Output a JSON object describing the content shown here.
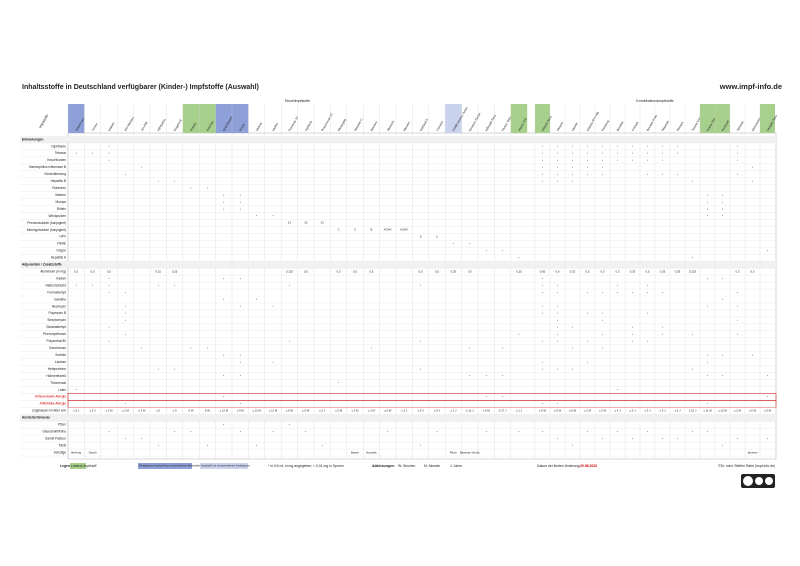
{
  "header": {
    "title": "Inhaltsstoffe in Deutschland verfügbarer (Kinder-) Impfstoffe (Auswahl)",
    "url": "www.impf-info.de"
  },
  "table": {
    "corner": "Impfstoffe",
    "groups": [
      {
        "label": "Einzelimpfstoffe",
        "from": 0,
        "to": 27
      },
      {
        "label": "Kombinationsimpfstoffe",
        "from": 28,
        "to": 43
      }
    ],
    "columns": [
      {
        "name": "Tetanol pur",
        "color": "#8ea0d8"
      },
      {
        "name": "Td-pur"
      },
      {
        "name": "Infanrix"
      },
      {
        "name": "IPV Merieux"
      },
      {
        "name": "Act-HIB"
      },
      {
        "name": "HBVaxPro"
      },
      {
        "name": "Engerix-B"
      },
      {
        "name": "Rotarix",
        "color": "#a8d08d"
      },
      {
        "name": "RotaTeq",
        "color": "#a8d08d"
      },
      {
        "name": "M-M-RVaxPro",
        "color": "#8ea0d8"
      },
      {
        "name": "Priorix",
        "color": "#8ea0d8"
      },
      {
        "name": "Varivax"
      },
      {
        "name": "Varilrix"
      },
      {
        "name": "Prevenar 13"
      },
      {
        "name": "Synflorix"
      },
      {
        "name": "Pneumovax 23"
      },
      {
        "name": "Menjugate"
      },
      {
        "name": "NeisVac-C"
      },
      {
        "name": "Bexsero"
      },
      {
        "name": "Nimenrix"
      },
      {
        "name": "Menveo"
      },
      {
        "name": "Gardasil 9"
      },
      {
        "name": "Cervarix"
      },
      {
        "name": "FSME-Immun Junior",
        "color": "#c9d3ee"
      },
      {
        "name": "Encepur Kinder"
      },
      {
        "name": "Influsplit Tetra"
      },
      {
        "name": "Fluenz Tetra"
      },
      {
        "name": "Havrix 720",
        "color": "#a8d08d"
      },
      {
        "name": "Infanrix hexa",
        "color": "#a8d08d"
      },
      {
        "name": "Hexyon"
      },
      {
        "name": "Vaxelis"
      },
      {
        "name": "Infanrix-IPV+Hib"
      },
      {
        "name": "Pentavac"
      },
      {
        "name": "Boostrix"
      },
      {
        "name": "Covaxis"
      },
      {
        "name": "Boostrix Polio"
      },
      {
        "name": "Repevax"
      },
      {
        "name": "Revaxis"
      },
      {
        "name": "Twinrix Kinder"
      },
      {
        "name": "Priorix-Tetra",
        "color": "#a8d08d"
      },
      {
        "name": "ProQuad",
        "color": "#a8d08d"
      },
      {
        "name": "Tetravac"
      },
      {
        "name": "Quinvaxem"
      },
      {
        "name": "Vaxigrip Tetra",
        "color": "#a8d08d"
      }
    ],
    "rows": [
      {
        "label": "Erkrankungen",
        "section": true
      },
      {
        "label": "Diphtherie",
        "cells": {
          "2": "•",
          "28": "•",
          "29": "•",
          "30": "•",
          "31": "•",
          "32": "•",
          "33": "•",
          "34": "•",
          "35": "•",
          "36": "•",
          "37": "•",
          "41": "•"
        }
      },
      {
        "label": "Tetanus",
        "cells": {
          "0": "•",
          "1": "•",
          "2": "•",
          "28": "•",
          "29": "•",
          "30": "•",
          "31": "•",
          "32": "•",
          "33": "•",
          "34": "•",
          "35": "•",
          "36": "•",
          "37": "•",
          "41": "•"
        }
      },
      {
        "label": "Keuchhusten",
        "cells": {
          "2": "•",
          "28": "•",
          "29": "•",
          "30": "•",
          "31": "•",
          "32": "•",
          "33": "•",
          "34": "•",
          "35": "•",
          "36": "•",
          "41": "•"
        }
      },
      {
        "label": "Haemophilus influenzae B",
        "cells": {
          "4": "•",
          "28": "•",
          "29": "•",
          "30": "•",
          "31": "•",
          "32": "•",
          "42": "•"
        }
      },
      {
        "label": "Kinderlähmung",
        "cells": {
          "3": "•",
          "28": "•",
          "29": "•",
          "30": "•",
          "31": "•",
          "32": "•",
          "35": "•",
          "36": "•",
          "37": "•",
          "41": "•"
        }
      },
      {
        "label": "Hepatitis B",
        "cells": {
          "5": "•",
          "6": "•",
          "28": "•",
          "29": "•",
          "30": "•",
          "38": "•",
          "42": "•"
        }
      },
      {
        "label": "Rotaviren",
        "cells": {
          "7": "•",
          "8": "•"
        }
      },
      {
        "label": "Masern",
        "cells": {
          "9": "•",
          "10": "•",
          "39": "•",
          "40": "•"
        }
      },
      {
        "label": "Mumps",
        "cells": {
          "9": "•",
          "10": "•",
          "39": "•",
          "40": "•"
        }
      },
      {
        "label": "Röteln",
        "cells": {
          "9": "•",
          "10": "•",
          "39": "•",
          "40": "•"
        }
      },
      {
        "label": "Windpocken",
        "cells": {
          "11": "•",
          "12": "•",
          "39": "•",
          "40": "•"
        }
      },
      {
        "label": "Pneumokokken (konjugiert)",
        "cells": {
          "13": "13",
          "14": "10",
          "15": "23"
        }
      },
      {
        "label": "Meningokokken (konjugiert)",
        "cells": {
          "16": "C",
          "17": "C",
          "18": "B",
          "19": "ACWY",
          "20": "ACWY"
        }
      },
      {
        "label": "HPV",
        "cells": {
          "21": "9",
          "22": "2"
        }
      },
      {
        "label": "FSME",
        "cells": {
          "23": "•",
          "24": "•"
        }
      },
      {
        "label": "Grippe",
        "cells": {
          "25": "•",
          "26": "•",
          "43": "•"
        }
      },
      {
        "label": "Hepatitis A",
        "cells": {
          "27": "•",
          "38": "•"
        }
      },
      {
        "label": "Adjuvantien / Zusatzstoffe",
        "section": true
      },
      {
        "label": "Aluminium (in mg)",
        "cells": {
          "0": "0,5",
          "1": "0,5",
          "2": "0,5",
          "5": "0,25",
          "6": "0,25",
          "13": "0,125",
          "14": "0,5",
          "16": "0,3",
          "17": "0,5",
          "18": "0,5",
          "21": "0,5",
          "22": "0,5",
          "23": "0,35",
          "24": "0,3",
          "27": "0,25",
          "28": "0,82",
          "29": "0,6",
          "30": "0,32",
          "31": "0,5",
          "32": "0,3",
          "33": "0,3",
          "34": "0,33",
          "35": "0,5",
          "36": "0,33",
          "37": "0,35",
          "38": "0,225",
          "41": "0,3",
          "42": "0,3"
        }
      },
      {
        "label": "Kalium",
        "cells": {
          "2": "•",
          "9": "•",
          "10": "•",
          "28": "•",
          "39": "•",
          "40": "•"
        }
      },
      {
        "label": "Natriumchlorid",
        "cells": {
          "0": "•",
          "1": "•",
          "2": "•",
          "5": "•",
          "6": "•",
          "13": "•",
          "21": "•",
          "28": "•",
          "29": "•",
          "33": "•",
          "35": "•"
        }
      },
      {
        "label": "Formaldehyd",
        "cells": {
          "2": "•",
          "3": "•",
          "28": "•",
          "29": "•",
          "31": "•",
          "32": "•",
          "33": "•",
          "34": "•",
          "35": "•",
          "36": "•",
          "41": "•"
        }
      },
      {
        "label": "Gelatine",
        "cells": {
          "9": "•",
          "11": "•",
          "40": "•"
        }
      },
      {
        "label": "Neomycin",
        "cells": {
          "3": "•",
          "10": "•",
          "12": "•",
          "28": "•",
          "29": "•",
          "39": "•",
          "41": "•"
        }
      },
      {
        "label": "Polymyxin B",
        "cells": {
          "3": "•",
          "28": "•",
          "29": "•",
          "31": "•",
          "32": "•",
          "35": "•"
        }
      },
      {
        "label": "Streptomycin",
        "cells": {
          "3": "•",
          "29": "•",
          "32": "•",
          "41": "•"
        }
      },
      {
        "label": "Glutaraldehyd",
        "cells": {
          "2": "•",
          "29": "•",
          "30": "•",
          "34": "•",
          "36": "•"
        }
      },
      {
        "label": "Phenoxyethanol",
        "cells": {
          "3": "•",
          "27": "•",
          "29": "•",
          "32": "•",
          "34": "•",
          "36": "•",
          "38": "•",
          "41": "•"
        }
      },
      {
        "label": "Polysorbat 80",
        "cells": {
          "2": "•",
          "13": "•",
          "21": "•",
          "28": "•",
          "29": "•",
          "31": "•",
          "34": "•",
          "35": "•"
        }
      },
      {
        "label": "Saccharose",
        "cells": {
          "4": "•",
          "7": "•",
          "8": "•",
          "18": "•",
          "24": "•",
          "26": "•",
          "30": "•",
          "32": "•"
        }
      },
      {
        "label": "Sorbitol",
        "cells": {
          "9": "•",
          "10": "•",
          "39": "•",
          "40": "•",
          "42": "•"
        }
      },
      {
        "label": "Lactose",
        "cells": {
          "10": "•",
          "12": "•",
          "28": "•",
          "31": "•",
          "39": "•"
        }
      },
      {
        "label": "Hefeproteine",
        "cells": {
          "5": "•",
          "6": "•",
          "21": "•",
          "28": "•",
          "29": "•",
          "30": "•",
          "38": "•"
        }
      },
      {
        "label": "Hühnereiweiß",
        "cells": {
          "9": "•",
          "10": "•",
          "24": "•",
          "25": "•",
          "26": "•",
          "39": "•",
          "40": "•",
          "43": "•"
        }
      },
      {
        "label": "Thiomersal",
        "cells": {
          "16": "•"
        }
      },
      {
        "label": "Latex",
        "cells": {
          "0": "•",
          "33": "•"
        }
      },
      {
        "label": "Hühnereiweiß-Allergie",
        "color": "#d00000",
        "cells": {
          "9": "•",
          "25": "•",
          "26": "•",
          "43": "•"
        }
      },
      {
        "label": "Antibiotika-Allergie",
        "color": "#d00000",
        "cells": {
          "3": "•",
          "10": "•",
          "28": "•",
          "29": "•",
          "39": "•"
        }
      },
      {
        "label": "Zugelassen im Alter von",
        "cells": {
          "0": "≥ 5 J",
          "1": "≥ 5 J",
          "2": "≥ 2 M",
          "3": "≥ 2 M",
          "4": "≥ 2 M",
          "5": "≥ 0",
          "6": "≥ 0",
          "7": "6 W",
          "8": "6 W",
          "9": "≥ 12 M",
          "10": "≥ 9 M",
          "11": "≥ 12 M",
          "12": "≥ 11 M",
          "13": "≥ 6 W",
          "14": "≥ 6 W",
          "15": "≥ 2 J",
          "16": "≥ 2 M",
          "17": "≥ 2 M",
          "18": "≥ 2 M",
          "19": "≥ 6 W",
          "20": "≥ 2 J",
          "21": "≥ 9 J",
          "22": "≥ 9 J",
          "23": "≥ 1 J",
          "24": "1-11 J",
          "25": "≥ 6 M",
          "26": "2-17 J",
          "27": "≥ 1 J",
          "28": "≥ 6 W",
          "29": "≥ 6 W",
          "30": "≥ 6 W",
          "31": "≥ 2 M",
          "32": "≥ 2 M",
          "33": "≥ 4 J",
          "34": "≥ 3 J",
          "35": "≥ 3 J",
          "36": "≥ 3 J",
          "37": "≥ 6 J",
          "38": "1-15 J",
          "39": "≥ 11 M",
          "40": "≥ 12 M",
          "41": "≥ 2 M",
          "42": "≥ 6 W",
          "43": "≥ 6 M"
        }
      },
      {
        "label": "Herstellerhinweise",
        "section": true
      },
      {
        "label": "Pfizer",
        "cells": {
          "13": "•",
          "9": "•"
        }
      },
      {
        "label": "GlaxoSmithKline",
        "cells": {
          "2": "•",
          "6": "•",
          "7": "•",
          "10": "•",
          "12": "•",
          "14": "•",
          "19": "•",
          "22": "•",
          "25": "•",
          "27": "•",
          "28": "•",
          "31": "•",
          "33": "•",
          "35": "•",
          "38": "•",
          "39": "•"
        }
      },
      {
        "label": "Sanofi Pasteur",
        "cells": {
          "3": "•",
          "4": "•",
          "29": "•",
          "32": "•",
          "34": "•",
          "36": "•",
          "37": "•",
          "41": "•",
          "43": "•"
        }
      },
      {
        "label": "MSD",
        "cells": {
          "5": "•",
          "8": "•",
          "11": "•",
          "15": "•",
          "21": "•",
          "30": "•",
          "40": "•"
        }
      },
      {
        "label": "Sonstige",
        "cells": {
          "0": "Behring",
          "1": "Sanofi",
          "17": "Baxter",
          "18": "Novartis",
          "23": "Pfizer",
          "24": "Bavarian Nordic",
          "42": "Janssen"
        }
      }
    ]
  },
  "legend": {
    "title": "Legende",
    "live": "Lebend-Impfstoff",
    "reactogenic": "Reaktogener Impfstoff aus verschiedenen Bestandteilen",
    "combo": "Impfstoff mit verschiedenen Antikörpern",
    "note": "* in 0,5 ml; in mg angegeben; < 0,01 mg in Spuren",
    "abbrev_title": "Abkürzungen:",
    "abbrev": [
      "W: Wochen",
      "M: Monate",
      "J: Jahre"
    ],
    "date_label": "Datum der letzten Änderung:",
    "date": "20.08.2020",
    "copyright": "©Dr. med. Steffen Rabe (impf-info.de)"
  }
}
